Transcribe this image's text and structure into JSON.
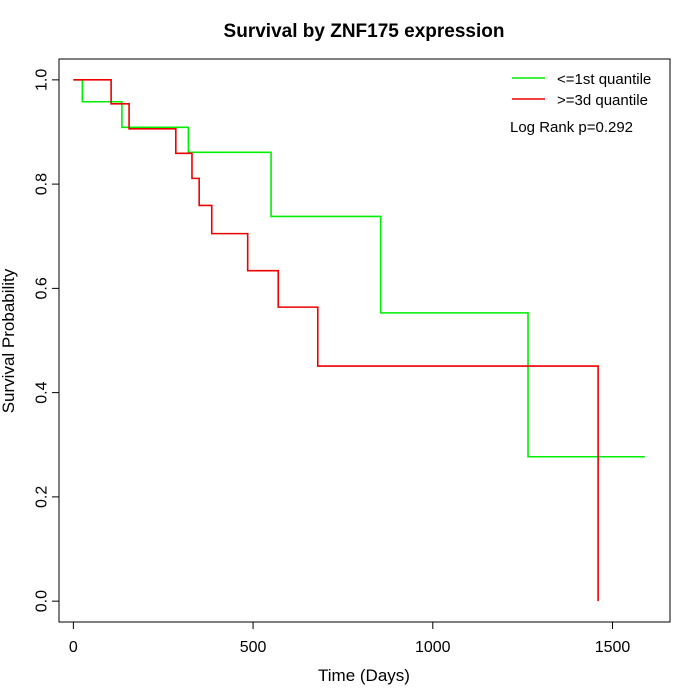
{
  "chart_data": {
    "type": "line",
    "title": "Survival by ZNF175 expression",
    "xlabel": "Time (Days)",
    "ylabel": "Survival Probability",
    "xlim": [
      -40,
      1660
    ],
    "ylim": [
      -0.04,
      1.04
    ],
    "xticks": [
      0,
      500,
      1000,
      1500
    ],
    "yticks": [
      0.0,
      0.2,
      0.4,
      0.6,
      0.8,
      1.0
    ],
    "xtick_labels": [
      "0",
      "500",
      "1000",
      "1500"
    ],
    "ytick_labels": [
      "0.0",
      "0.2",
      "0.4",
      "0.6",
      "0.8",
      "1.0"
    ],
    "grid": false,
    "legend_position": "top-right",
    "annotation": "Log Rank p=0.292",
    "series": [
      {
        "name": "<=1st quantile",
        "color": "#00ee00",
        "x": [
          0,
          25,
          135,
          320,
          550,
          855,
          1265,
          1590
        ],
        "y": [
          1.0,
          0.958,
          0.909,
          0.861,
          0.738,
          0.553,
          0.277,
          0.277
        ]
      },
      {
        "name": ">=3d quantile",
        "color": "#ee0000",
        "x": [
          0,
          105,
          155,
          285,
          330,
          350,
          385,
          485,
          570,
          680,
          1460,
          1460
        ],
        "y": [
          1.0,
          0.954,
          0.906,
          0.859,
          0.811,
          0.759,
          0.705,
          0.634,
          0.564,
          0.451,
          0.451,
          0.0
        ]
      }
    ]
  }
}
